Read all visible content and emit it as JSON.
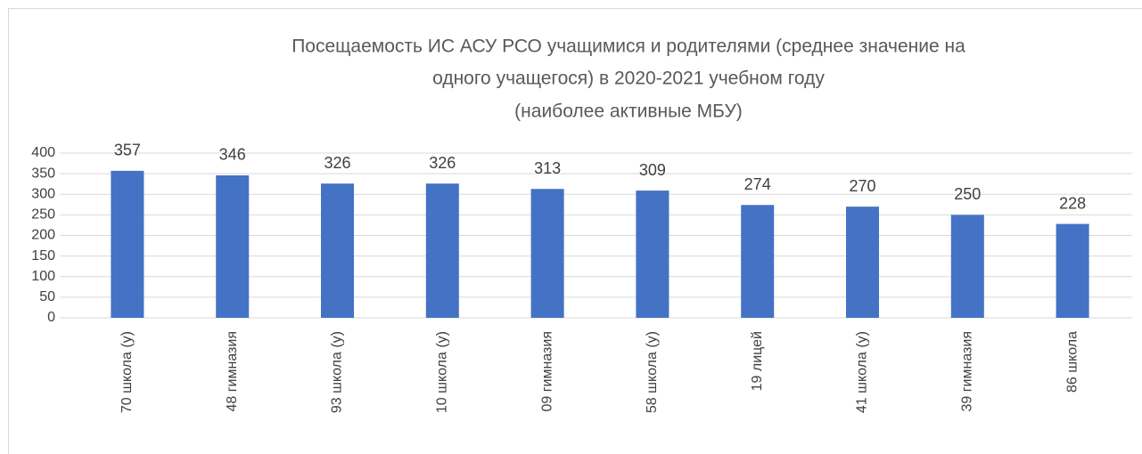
{
  "chart_data": {
    "type": "bar",
    "title": [
      "Посещаемость ИС АСУ РСО учащимися и родителями (среднее значение на",
      "одного учащегося) в 2020-2021 учебном году",
      "(наиболее активные МБУ)"
    ],
    "categories": [
      "70 школа (у)",
      "48 гимназия",
      "93 школа (у)",
      "10 школа (у)",
      "09 гимназия",
      "58 школа (у)",
      "19 лицей",
      "41 школа (у)",
      "39 гимназия",
      "86 школа"
    ],
    "values": [
      357,
      346,
      326,
      326,
      313,
      309,
      274,
      270,
      250,
      228
    ],
    "color": "#4472c4",
    "ylim": [
      0,
      400
    ],
    "yticks": [
      0,
      50,
      100,
      150,
      200,
      250,
      300,
      350,
      400
    ],
    "grid": true
  }
}
